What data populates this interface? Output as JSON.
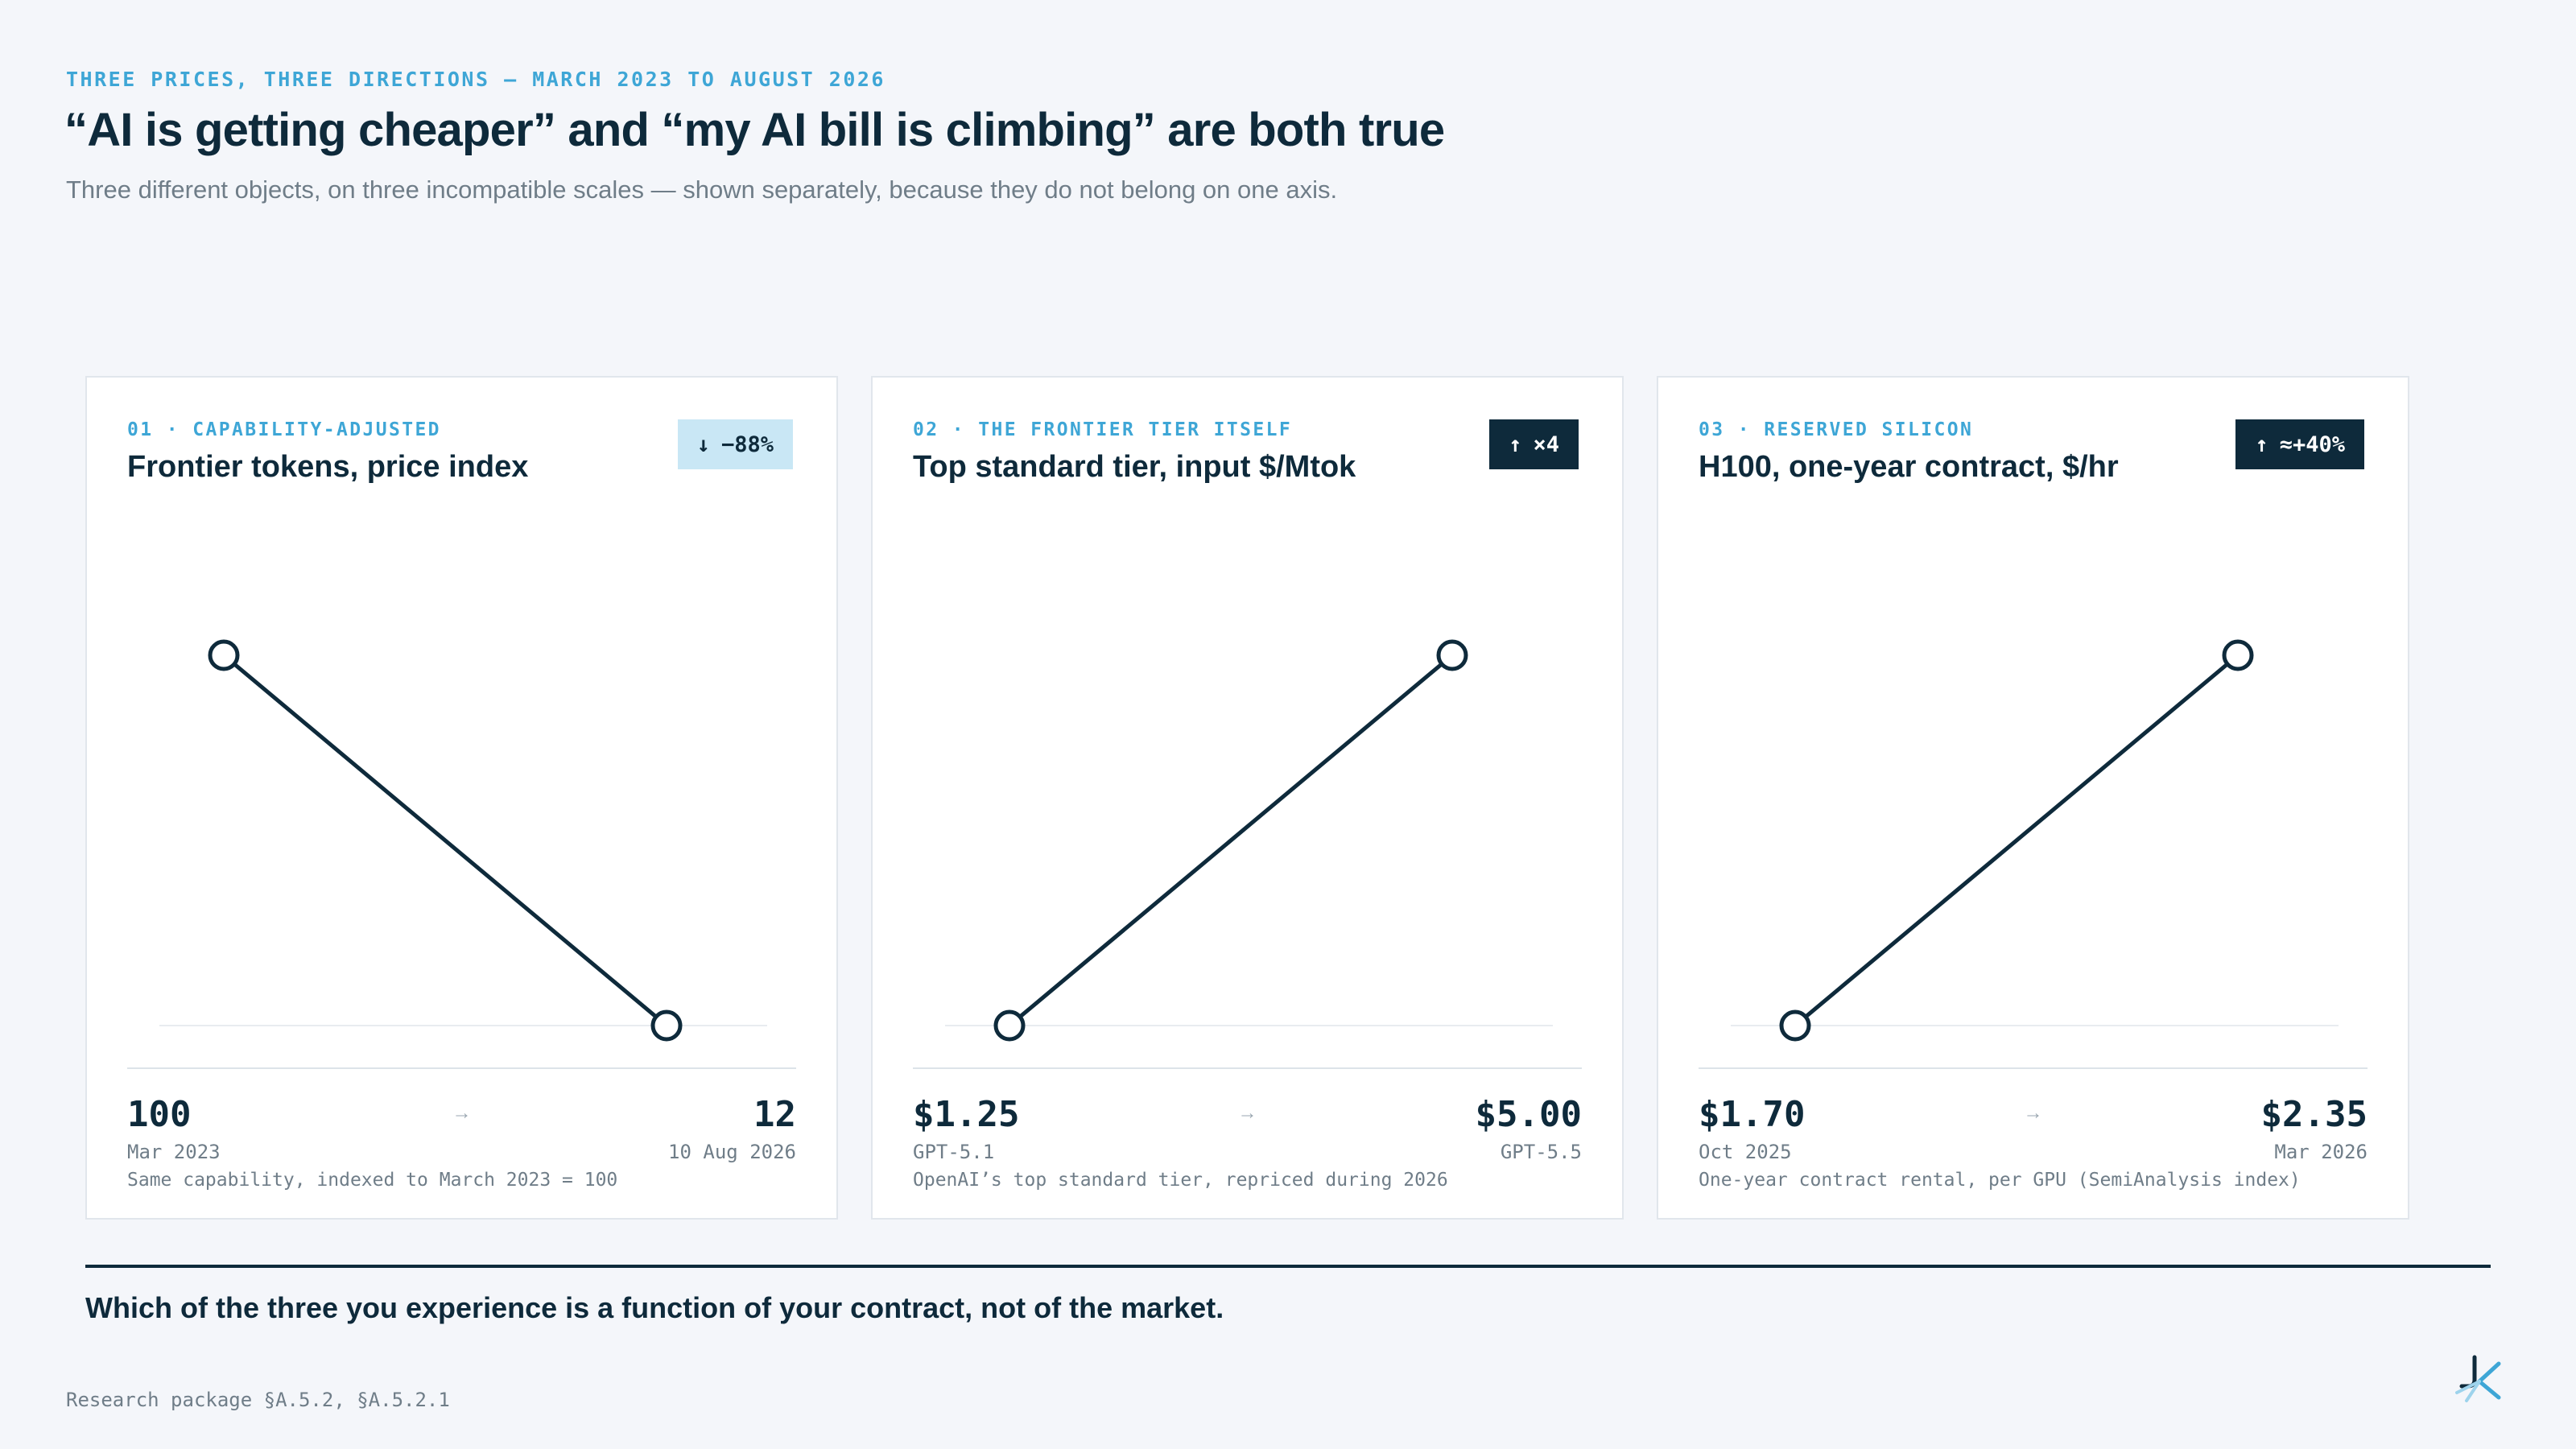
{
  "header": {
    "kicker": "THREE PRICES, THREE DIRECTIONS — MARCH 2023 TO AUGUST 2026",
    "title": "“AI is getting cheaper” and “my AI bill is climbing” are both true",
    "subtitle": "Three different objects, on three incompatible scales — shown separately, because they do not belong on one axis."
  },
  "colors": {
    "accent": "#3ea6d6",
    "ink": "#0e2a3b",
    "muted": "#6f7d88",
    "badge_down_bg": "#c9e7f5"
  },
  "cards": [
    {
      "label": "01 · CAPABILITY-ADJUSTED",
      "title": "Frontier tokens, price index",
      "badge_icon": "arrow-down-icon",
      "badge_arrow": "↓",
      "badge_text": "−88%",
      "badge_style": "down",
      "start_value": "100",
      "end_value": "12",
      "start_sub": "Mar 2023",
      "end_sub": "10 Aug 2026",
      "note": "Same capability, indexed to March 2023 = 100"
    },
    {
      "label": "02 · THE FRONTIER TIER ITSELF",
      "title": "Top standard tier, input $/Mtok",
      "badge_icon": "arrow-up-icon",
      "badge_arrow": "↑",
      "badge_text": "×4",
      "badge_style": "up",
      "start_value": "$1.25",
      "end_value": "$5.00",
      "start_sub": "GPT-5.1",
      "end_sub": "GPT-5.5",
      "note": "OpenAI’s top standard tier, repriced during 2026"
    },
    {
      "label": "03 · RESERVED SILICON",
      "title": "H100, one-year contract, $/hr",
      "badge_icon": "arrow-up-icon",
      "badge_arrow": "↑",
      "badge_text": "≈+40%",
      "badge_style": "up",
      "start_value": "$1.70",
      "end_value": "$2.35",
      "start_sub": "Oct 2025",
      "end_sub": "Mar 2026",
      "note": "One-year contract rental, per GPU (SemiAnalysis index)"
    }
  ],
  "chart_data": [
    {
      "type": "line",
      "title": "Frontier tokens, price index",
      "x": [
        "Mar 2023",
        "10 Aug 2026"
      ],
      "series": [
        {
          "values": [
            100,
            12
          ]
        }
      ],
      "ylim": [
        12,
        100
      ],
      "grid": false
    },
    {
      "type": "line",
      "title": "Top standard tier, input $/Mtok",
      "x": [
        "GPT-5.1",
        "GPT-5.5"
      ],
      "series": [
        {
          "values": [
            1.25,
            5.0
          ]
        }
      ],
      "ylim": [
        1.25,
        5.0
      ],
      "grid": false
    },
    {
      "type": "line",
      "title": "H100, one-year contract, $/hr",
      "x": [
        "Oct 2025",
        "Mar 2026"
      ],
      "series": [
        {
          "values": [
            1.7,
            2.35
          ]
        }
      ],
      "ylim": [
        1.7,
        2.35
      ],
      "grid": false
    }
  ],
  "conclusion": "Which of the three you experience is a function of your contract, not of the market.",
  "footer": "Research package §A.5.2, §A.5.2.1",
  "logo_icon": "brand-logo-icon"
}
